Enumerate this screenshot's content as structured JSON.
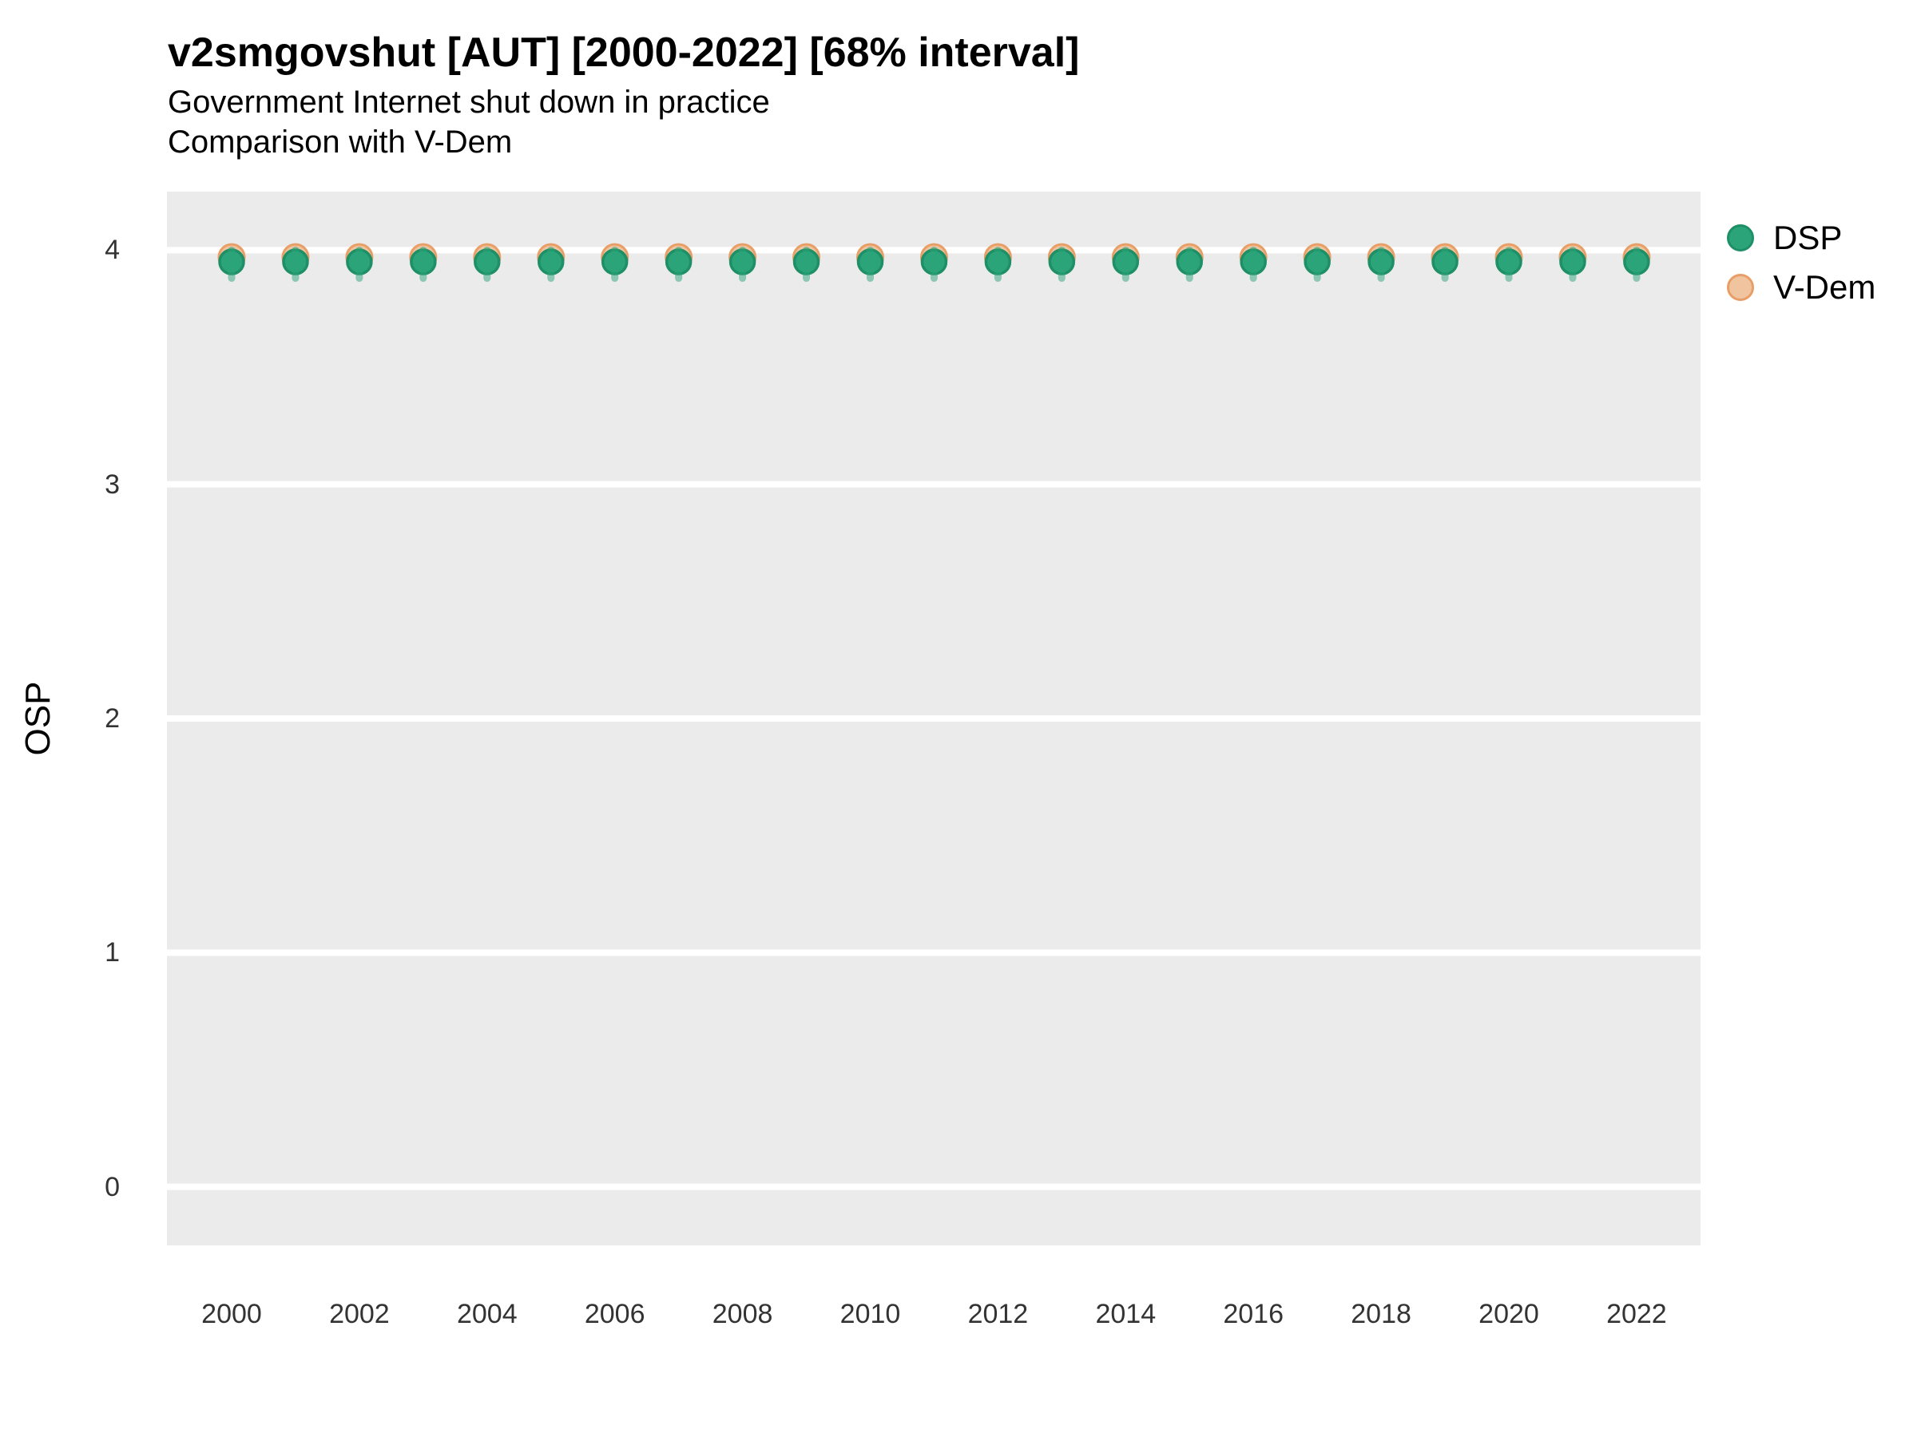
{
  "chart_data": {
    "type": "scatter",
    "title": "v2smgovshut [AUT] [2000-2022] [68% interval]",
    "subtitle": "Government Internet shut down in practice",
    "subtitle2": "Comparison with V-Dem",
    "interval_label": "68% interval",
    "country": "AUT",
    "variable": "v2smgovshut",
    "xlabel": "",
    "ylabel": "OSP",
    "ylim": [
      -0.25,
      4.25
    ],
    "yticks": [
      0,
      1,
      2,
      3,
      4
    ],
    "xticks": [
      2000,
      2002,
      2004,
      2006,
      2008,
      2010,
      2012,
      2014,
      2016,
      2018,
      2020,
      2022
    ],
    "grid": "horizontal-major-only",
    "panel_bg": "#EBEBEB",
    "grid_color": "#FFFFFF",
    "legend_position": "right-top",
    "x": [
      2000,
      2001,
      2002,
      2003,
      2004,
      2005,
      2006,
      2007,
      2008,
      2009,
      2010,
      2011,
      2012,
      2013,
      2014,
      2015,
      2016,
      2017,
      2018,
      2019,
      2020,
      2021,
      2022
    ],
    "series": [
      {
        "name": "DSP",
        "color": "#2BA479",
        "stroke": "#1E8F66",
        "interval_color": "rgba(43,164,121,0.5)",
        "values": [
          3.95,
          3.95,
          3.95,
          3.95,
          3.95,
          3.95,
          3.95,
          3.95,
          3.95,
          3.95,
          3.95,
          3.95,
          3.95,
          3.95,
          3.95,
          3.95,
          3.95,
          3.95,
          3.95,
          3.95,
          3.95,
          3.95,
          3.95
        ],
        "interval_low": [
          3.88,
          3.88,
          3.88,
          3.88,
          3.88,
          3.88,
          3.88,
          3.88,
          3.88,
          3.88,
          3.88,
          3.88,
          3.88,
          3.88,
          3.88,
          3.88,
          3.88,
          3.88,
          3.88,
          3.88,
          3.88,
          3.88,
          3.88
        ],
        "interval_high": [
          4.0,
          4.0,
          4.0,
          4.0,
          4.0,
          4.0,
          4.0,
          4.0,
          4.0,
          4.0,
          4.0,
          4.0,
          4.0,
          4.0,
          4.0,
          4.0,
          4.0,
          4.0,
          4.0,
          4.0,
          4.0,
          4.0,
          4.0
        ]
      },
      {
        "name": "V-Dem",
        "color": "#F0C49E",
        "stroke": "#E89E66",
        "values": [
          3.97,
          3.97,
          3.97,
          3.97,
          3.97,
          3.97,
          3.97,
          3.97,
          3.97,
          3.97,
          3.97,
          3.97,
          3.97,
          3.97,
          3.97,
          3.97,
          3.97,
          3.97,
          3.97,
          3.97,
          3.97,
          3.97,
          3.97
        ]
      }
    ]
  }
}
